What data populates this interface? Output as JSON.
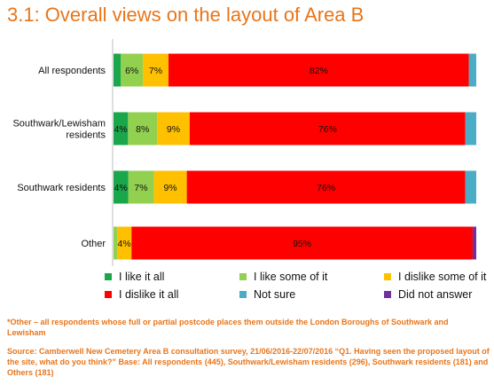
{
  "title": "3.1: Overall views on the layout of Area B",
  "chart_data": {
    "type": "bar",
    "orientation": "horizontal",
    "stacked": true,
    "percent_scale": true,
    "categories": [
      [
        "All respondents"
      ],
      [
        "Southwark/Lewisham",
        "residents"
      ],
      [
        "Southwark residents"
      ],
      [
        "Other"
      ]
    ],
    "series": [
      {
        "name": "I like it all",
        "color": "#1AA64A",
        "values": [
          2,
          4,
          4,
          0
        ],
        "labels": [
          "",
          "4%",
          "4%",
          ""
        ]
      },
      {
        "name": "I like some of it",
        "color": "#92D050",
        "values": [
          6,
          8,
          7,
          1
        ],
        "labels": [
          "6%",
          "8%",
          "7%",
          ""
        ]
      },
      {
        "name": "I dislike some of it",
        "color": "#FFC000",
        "values": [
          7,
          9,
          9,
          4
        ],
        "labels": [
          "7%",
          "9%",
          "9%",
          "4%"
        ]
      },
      {
        "name": "I dislike it all",
        "color": "#FF0000",
        "values": [
          82,
          76,
          76,
          95
        ],
        "labels": [
          "82%",
          "76%",
          "76%",
          "95%"
        ]
      },
      {
        "name": "Not sure",
        "color": "#4BACC6",
        "values": [
          2,
          3,
          3,
          0
        ],
        "labels": [
          "",
          "",
          "",
          ""
        ]
      },
      {
        "name": "Did not answer",
        "color": "#7030A0",
        "values": [
          0,
          0,
          0,
          1
        ],
        "labels": [
          "",
          "",
          "",
          ""
        ]
      }
    ],
    "legend_position": "bottom",
    "grid": false
  },
  "footnote": "*Other – all respondents whose full or partial postcode places them outside the London Boroughs of Southwark and Lewisham",
  "source": "Source: Camberwell New Cemetery Area B consultation survey, 21/06/2016-22/07/2016 “Q1. Having seen the proposed layout of the site, what do you think?” Base: All respondents (445), Southwark/Lewisham residents (296), Southwark residents (181) and Others (181)"
}
